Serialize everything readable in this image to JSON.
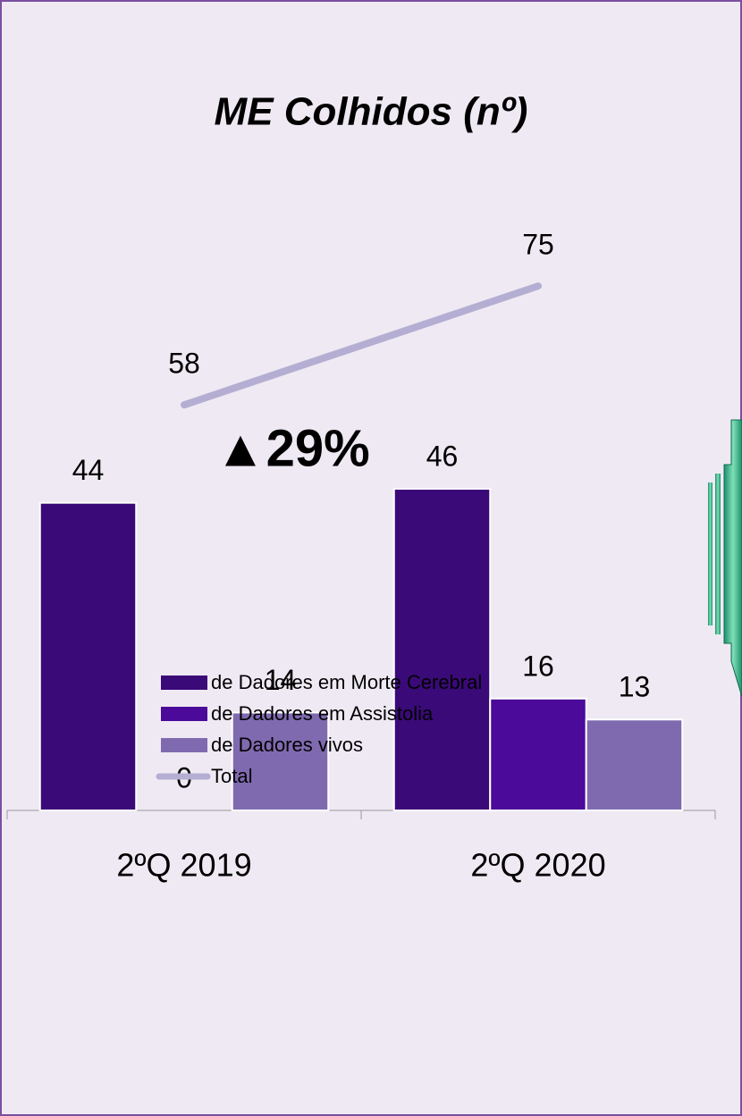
{
  "chart_data": {
    "type": "bar",
    "title": "ME Colhidos (nº)",
    "categories": [
      "2ºQ 2019",
      "2ºQ 2020"
    ],
    "series": [
      {
        "name": "de Dadores em Morte Cerebral",
        "color": "#3a0a78",
        "values": [
          44,
          46
        ]
      },
      {
        "name": "de Dadores em Assistolia",
        "color": "#4b0a9a",
        "values": [
          0,
          16
        ]
      },
      {
        "name": "de Dadores vivos",
        "color": "#7f6ab0",
        "values": [
          14,
          13
        ]
      },
      {
        "name": "Total",
        "color": "#b4aed3",
        "type": "line",
        "values": [
          58,
          75
        ]
      }
    ],
    "ylim": [
      0,
      80
    ],
    "annotation": "▲29%",
    "annotation_color": "#1aa64a"
  }
}
